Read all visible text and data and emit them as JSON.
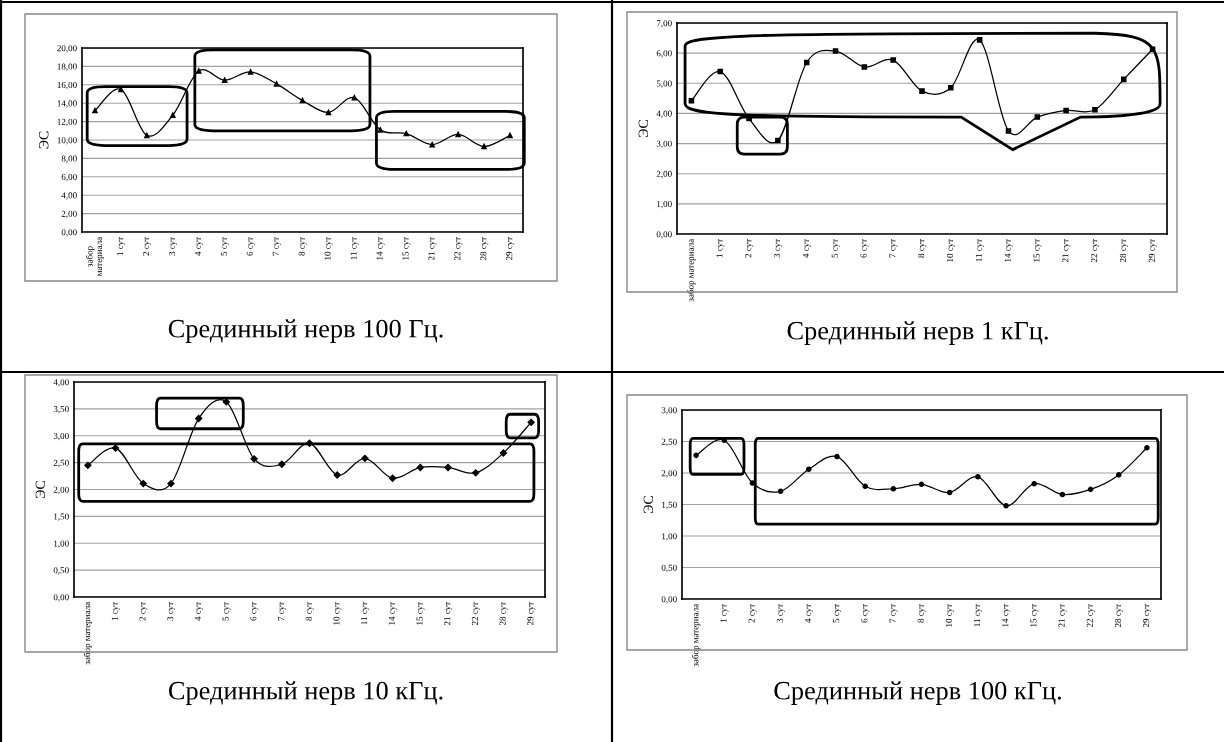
{
  "chart_data": [
    {
      "type": "line",
      "ylabel": "ЭС",
      "categories": [
        "забор\nматериала",
        "1 сут",
        "2 сут",
        "3 сут",
        "4 сут",
        "5 сут",
        "6 сут",
        "7 сут",
        "8 сут",
        "10 сут",
        "11 сут",
        "14 сут",
        "15 сут",
        "21 сут",
        "22 сут",
        "28 сут",
        "29 сут"
      ],
      "series": [
        {
          "color": "#000000",
          "values": [
            13.2,
            15.5,
            10.5,
            12.7,
            17.5,
            16.5,
            17.4,
            16.1,
            14.3,
            13.0,
            14.6,
            11.1,
            10.7,
            9.5,
            10.6,
            9.3,
            10.5
          ]
        }
      ],
      "ylim": [
        0,
        20
      ],
      "yticks": [
        {
          "value": 0,
          "label": "0,00"
        },
        {
          "value": 2,
          "label": "2,00"
        },
        {
          "value": 4,
          "label": "4,00"
        },
        {
          "value": 6,
          "label": "6,00"
        },
        {
          "value": 8,
          "label": "8,00"
        },
        {
          "value": 10,
          "label": "10,00"
        },
        {
          "value": 12,
          "label": "12,00"
        },
        {
          "value": 14,
          "label": "14,00"
        },
        {
          "value": 16,
          "label": "16,00"
        },
        {
          "value": 18,
          "label": "18,00"
        },
        {
          "value": 20,
          "label": "20,00"
        }
      ],
      "grid": "y",
      "marker": "triangle",
      "line_style": "solid",
      "annotations": [
        "Срединный нерв 100 Гц."
      ]
    },
    {
      "type": "line",
      "ylabel": "ЭС",
      "categories": [
        "забор материала",
        "1 сут",
        "2 сут",
        "3 сут",
        "4 сут",
        "5 сут",
        "6 сут",
        "7 сут",
        "8 сут",
        "10 сут",
        "11 сут",
        "14 сут",
        "15 сут",
        "21 сут",
        "22 сут",
        "28 сут",
        "29 сут"
      ],
      "series": [
        {
          "color": "#000000",
          "values": [
            4.42,
            5.39,
            3.83,
            3.1,
            5.69,
            6.07,
            5.54,
            5.77,
            4.74,
            4.85,
            6.44,
            3.42,
            3.88,
            4.1,
            4.12,
            5.13,
            6.13
          ]
        }
      ],
      "ylim": [
        0,
        7
      ],
      "yticks": [
        {
          "value": 0,
          "label": "0,00"
        },
        {
          "value": 1,
          "label": "1,00"
        },
        {
          "value": 2,
          "label": "2,00"
        },
        {
          "value": 3,
          "label": "3,00"
        },
        {
          "value": 4,
          "label": "4,00"
        },
        {
          "value": 5,
          "label": "5,00"
        },
        {
          "value": 6,
          "label": "6,00"
        },
        {
          "value": 7,
          "label": "7,00"
        }
      ],
      "grid": "y",
      "marker": "square",
      "line_style": "solid",
      "annotations": [
        "Срединный нерв 1 кГц."
      ]
    },
    {
      "type": "line",
      "ylabel": "ЭС",
      "categories": [
        "забор материала",
        "1 сут",
        "2 сут",
        "3 сут",
        "4 сут",
        "5 сут",
        "6 сут",
        "7 сут",
        "8 сут",
        "10 сут",
        "11 сут",
        "14 сут",
        "15 сут",
        "21 сут",
        "22 сут",
        "28 сут",
        "29 сут"
      ],
      "series": [
        {
          "color": "#000000",
          "values": [
            2.45,
            2.77,
            2.11,
            2.11,
            3.32,
            3.63,
            2.57,
            2.47,
            2.86,
            2.27,
            2.58,
            2.21,
            2.41,
            2.41,
            2.31,
            2.68,
            3.25
          ]
        }
      ],
      "ylim": [
        0,
        4
      ],
      "yticks": [
        {
          "value": 0,
          "label": "0,00"
        },
        {
          "value": 0.5,
          "label": "0,50"
        },
        {
          "value": 1,
          "label": "1,00"
        },
        {
          "value": 1.5,
          "label": "1,50"
        },
        {
          "value": 2,
          "label": "2,00"
        },
        {
          "value": 2.5,
          "label": "2,50"
        },
        {
          "value": 3,
          "label": "3,00"
        },
        {
          "value": 3.5,
          "label": "3,50"
        },
        {
          "value": 4,
          "label": "4,00"
        }
      ],
      "grid": "y",
      "marker": "diamond",
      "line_style": "solid",
      "annotations": [
        "Срединный нерв 10 кГц."
      ]
    },
    {
      "type": "line",
      "ylabel": "ЭС",
      "categories": [
        "забор материала",
        "1 сут",
        "2 сут",
        "3 сут",
        "4 сут",
        "5 сут",
        "6 сут",
        "7 сут",
        "8 сут",
        "10 сут",
        "11 сут",
        "14 сут",
        "15 сут",
        "21 сут",
        "22 сут",
        "28 сут",
        "29 сут"
      ],
      "series": [
        {
          "color": "#000000",
          "values": [
            2.28,
            2.52,
            1.84,
            1.71,
            2.06,
            2.26,
            1.79,
            1.75,
            1.82,
            1.69,
            1.94,
            1.48,
            1.83,
            1.66,
            1.74,
            1.97,
            2.4
          ]
        }
      ],
      "ylim": [
        0,
        3
      ],
      "yticks": [
        {
          "value": 0,
          "label": "0,00"
        },
        {
          "value": 0.5,
          "label": "0,50"
        },
        {
          "value": 1,
          "label": "1,00"
        },
        {
          "value": 1.5,
          "label": "1,50"
        },
        {
          "value": 2,
          "label": "2,00"
        },
        {
          "value": 2.5,
          "label": "2,50"
        },
        {
          "value": 3,
          "label": "3,00"
        }
      ],
      "grid": "y",
      "marker": "circle",
      "line_style": "solid",
      "annotations": [
        "Срединный нерв 100 кГц."
      ]
    }
  ]
}
